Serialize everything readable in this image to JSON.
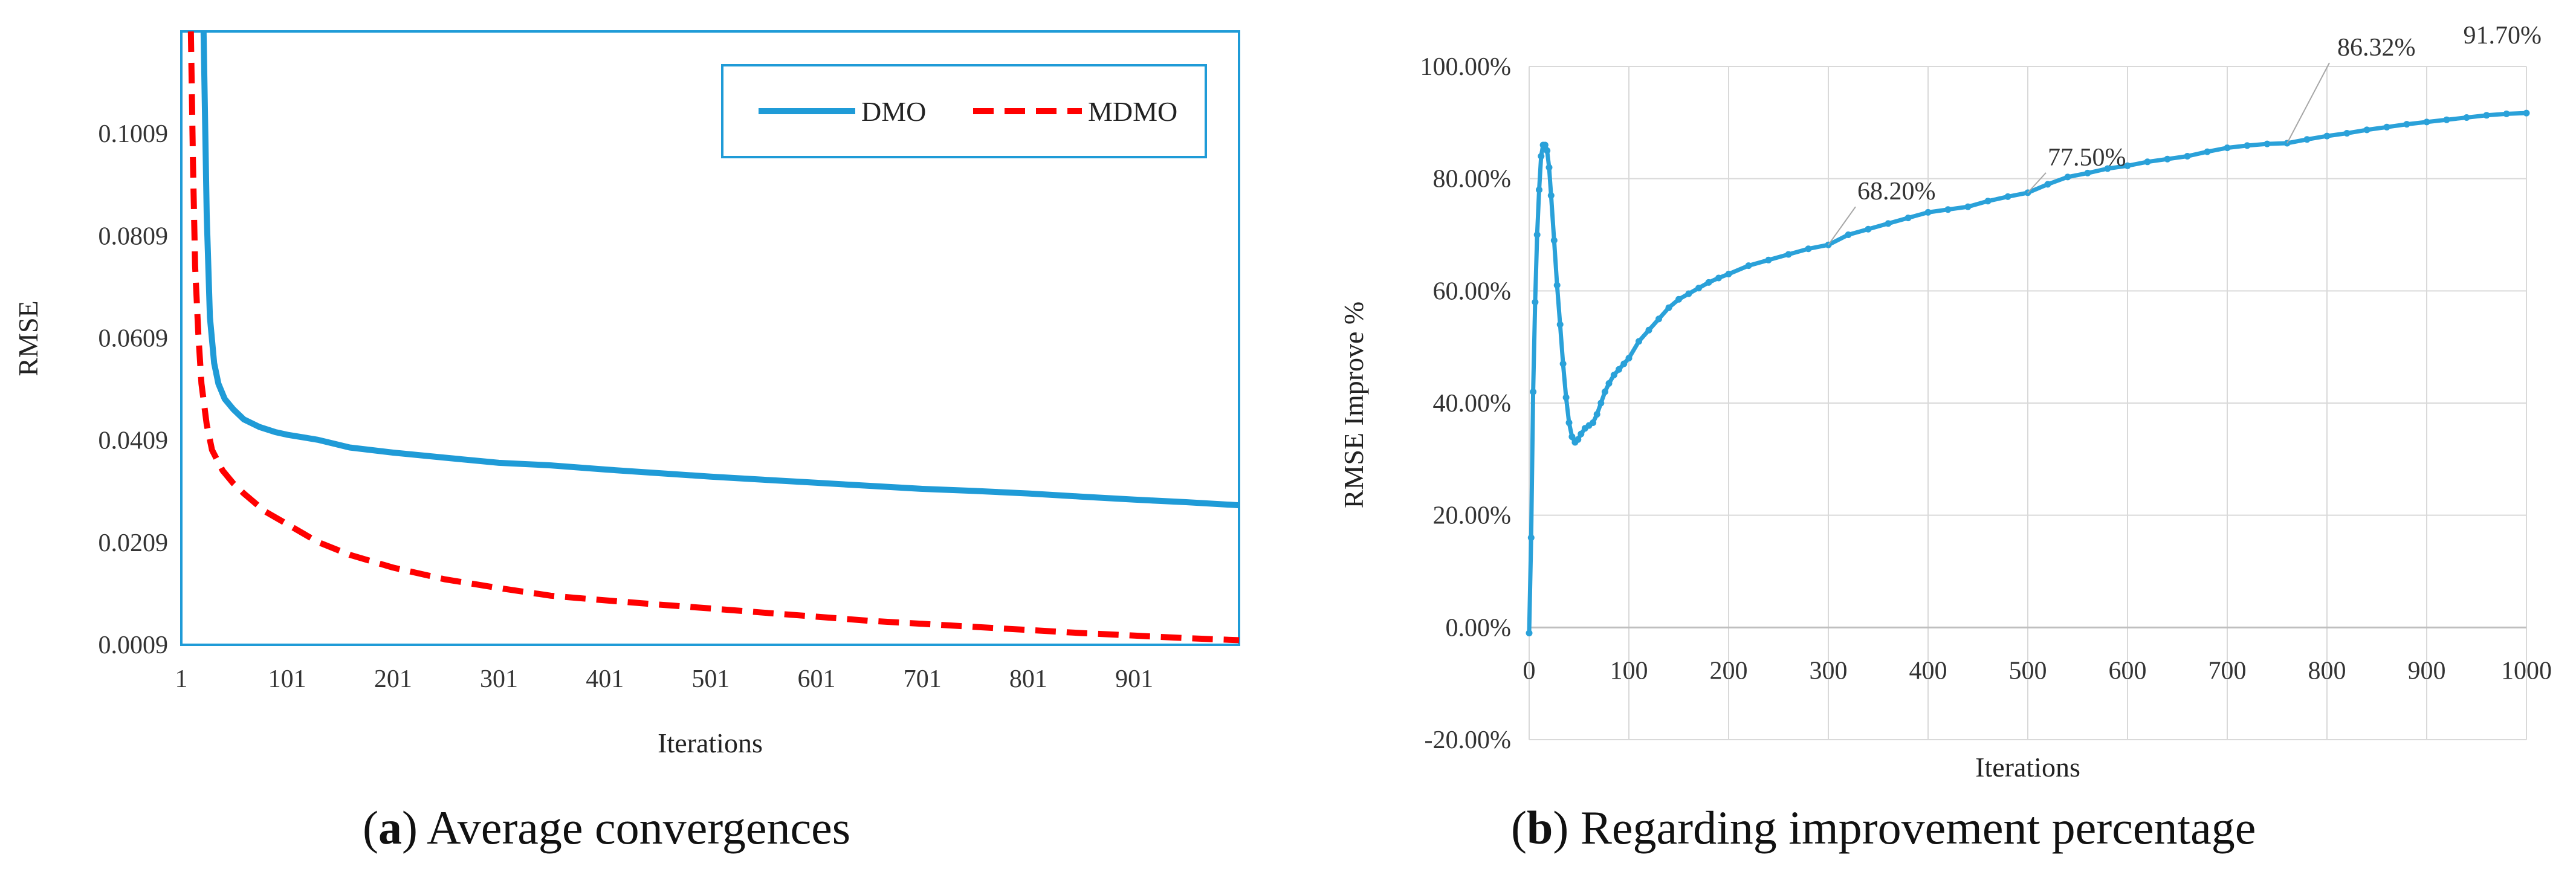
{
  "chart_data": [
    {
      "type": "line",
      "xlabel": "Iterations",
      "ylabel": "RMSE",
      "xlim": [
        1,
        1000
      ],
      "ylim": [
        0.0009,
        0.1209
      ],
      "xticks": [
        "1",
        "101",
        "201",
        "301",
        "401",
        "501",
        "601",
        "701",
        "801",
        "901"
      ],
      "yticks": [
        "0.0009",
        "0.0209",
        "0.0409",
        "0.0609",
        "0.0809",
        "0.1009"
      ],
      "legend_position": "top-right",
      "series": [
        {
          "name": "DMO",
          "color": "#1f9bd7",
          "style": "solid",
          "x": [
            22,
            25,
            28,
            32,
            36,
            42,
            50,
            60,
            75,
            90,
            101,
            130,
            160,
            201,
            250,
            301,
            350,
            401,
            450,
            501,
            550,
            601,
            650,
            701,
            750,
            801,
            850,
            901,
            950,
            1000
          ],
          "y": [
            0.1209,
            0.085,
            0.065,
            0.056,
            0.052,
            0.049,
            0.047,
            0.045,
            0.0435,
            0.0425,
            0.042,
            0.041,
            0.0395,
            0.0385,
            0.0375,
            0.0365,
            0.036,
            0.0352,
            0.0345,
            0.0338,
            0.0332,
            0.0326,
            0.032,
            0.0314,
            0.031,
            0.0305,
            0.0299,
            0.0293,
            0.0288,
            0.0282
          ]
        },
        {
          "name": "MDMO",
          "color": "#ff0000",
          "style": "dashed",
          "x": [
            10,
            12,
            14,
            17,
            20,
            25,
            30,
            40,
            50,
            60,
            80,
            101,
            130,
            160,
            201,
            250,
            301,
            350,
            401,
            450,
            501,
            550,
            601,
            650,
            701,
            750,
            801,
            850,
            901,
            950,
            1000
          ],
          "y": [
            0.1209,
            0.095,
            0.075,
            0.062,
            0.052,
            0.044,
            0.039,
            0.035,
            0.0325,
            0.0305,
            0.027,
            0.0245,
            0.021,
            0.0185,
            0.016,
            0.0137,
            0.012,
            0.0105,
            0.0096,
            0.0088,
            0.008,
            0.0072,
            0.0064,
            0.0056,
            0.005,
            0.0044,
            0.0038,
            0.0032,
            0.0027,
            0.0022,
            0.0018
          ]
        }
      ]
    },
    {
      "type": "line",
      "xlabel": "Iterations",
      "ylabel": "RMSE Improve %",
      "xlim": [
        0,
        1000
      ],
      "ylim": [
        -20,
        100
      ],
      "xticks": [
        "0",
        "100",
        "200",
        "300",
        "400",
        "500",
        "600",
        "700",
        "800",
        "900",
        "1000"
      ],
      "yticks": [
        "-20.00%",
        "0.00%",
        "20.00%",
        "40.00%",
        "60.00%",
        "80.00%",
        "100.00%"
      ],
      "series": [
        {
          "name": "RMSE Improve %",
          "color": "#2aa1d9",
          "x": [
            0,
            2,
            4,
            6,
            8,
            10,
            12,
            14,
            16,
            18,
            20,
            22,
            25,
            28,
            31,
            34,
            37,
            40,
            43,
            46,
            49,
            52,
            56,
            60,
            64,
            68,
            72,
            76,
            80,
            85,
            90,
            95,
            100,
            110,
            120,
            130,
            140,
            150,
            160,
            170,
            180,
            190,
            200,
            220,
            240,
            260,
            280,
            300,
            320,
            340,
            360,
            380,
            400,
            420,
            440,
            460,
            480,
            500,
            520,
            540,
            560,
            580,
            600,
            620,
            640,
            660,
            680,
            700,
            720,
            740,
            760,
            780,
            800,
            820,
            840,
            860,
            880,
            900,
            920,
            940,
            960,
            980,
            1000
          ],
          "y": [
            -1,
            16,
            42,
            58,
            70,
            78,
            84,
            86,
            86,
            85,
            82,
            77,
            69,
            61,
            54,
            47,
            41,
            36.5,
            34,
            33,
            33.5,
            34.5,
            35.5,
            36,
            36.5,
            38,
            40,
            42,
            43.5,
            45,
            46,
            47,
            48,
            51,
            53,
            55,
            57,
            58.5,
            59.5,
            60.5,
            61.5,
            62.3,
            63,
            64.5,
            65.5,
            66.5,
            67.5,
            68.2,
            70,
            71,
            72,
            73,
            74,
            74.5,
            75,
            76,
            76.8,
            77.5,
            79,
            80.3,
            81,
            81.8,
            82.3,
            83,
            83.5,
            84,
            84.8,
            85.5,
            85.9,
            86.2,
            86.32,
            87,
            87.6,
            88.1,
            88.7,
            89.2,
            89.7,
            90.1,
            90.5,
            90.9,
            91.3,
            91.55,
            91.7
          ]
        }
      ],
      "annotations": [
        {
          "x": 300,
          "y": 68.2,
          "label": "68.20%"
        },
        {
          "x": 500,
          "y": 77.5,
          "label": "77.50%"
        },
        {
          "x": 760,
          "y": 86.32,
          "label": "86.32%"
        },
        {
          "x": 1000,
          "y": 91.7,
          "label": "91.70%"
        }
      ]
    }
  ],
  "captions": {
    "a_letter": "a",
    "a_text": " Average convergences",
    "b_letter": "b",
    "b_text": " Regarding improvement percentage"
  }
}
